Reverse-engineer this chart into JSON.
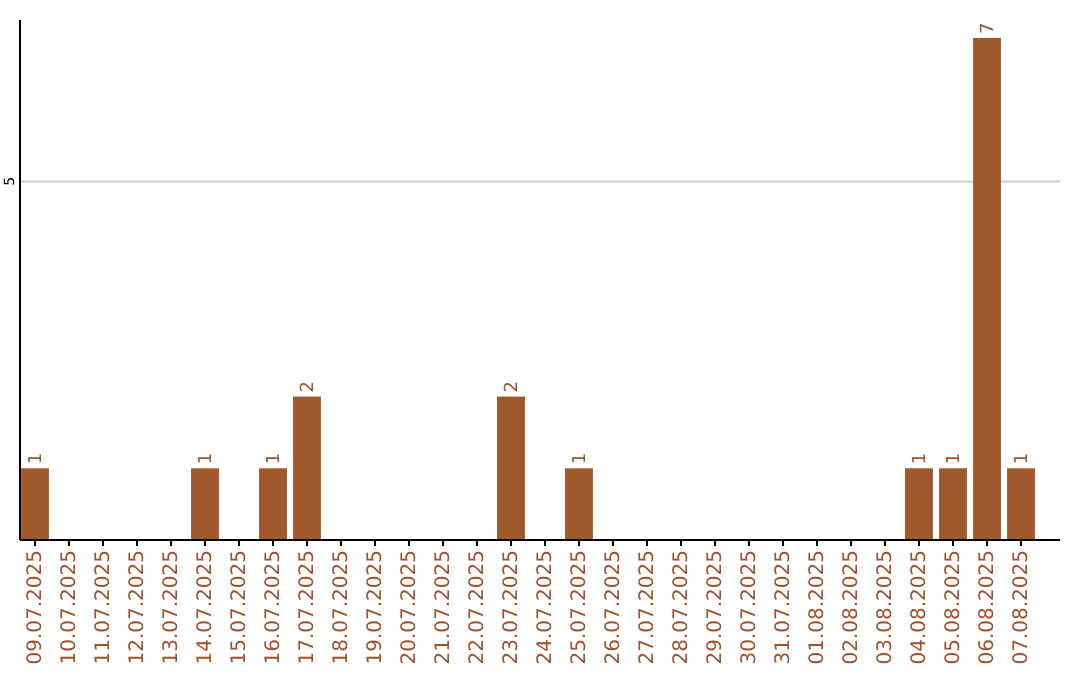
{
  "chart_data": {
    "type": "bar",
    "categories": [
      "09.07.2025",
      "10.07.2025",
      "11.07.2025",
      "12.07.2025",
      "13.07.2025",
      "14.07.2025",
      "15.07.2025",
      "16.07.2025",
      "17.07.2025",
      "18.07.2025",
      "19.07.2025",
      "20.07.2025",
      "21.07.2025",
      "22.07.2025",
      "23.07.2025",
      "24.07.2025",
      "25.07.2025",
      "26.07.2025",
      "27.07.2025",
      "28.07.2025",
      "29.07.2025",
      "30.07.2025",
      "31.07.2025",
      "01.08.2025",
      "02.08.2025",
      "03.08.2025",
      "04.08.2025",
      "05.08.2025",
      "06.08.2025",
      "07.08.2025"
    ],
    "values": [
      1,
      0,
      0,
      0,
      0,
      1,
      0,
      1,
      2,
      0,
      0,
      0,
      0,
      0,
      2,
      0,
      1,
      0,
      0,
      0,
      0,
      0,
      0,
      0,
      0,
      0,
      1,
      1,
      7,
      1
    ],
    "value_labels": [
      "1",
      null,
      null,
      null,
      null,
      "1",
      null,
      "1",
      "2",
      null,
      null,
      null,
      null,
      null,
      "2",
      null,
      "1",
      null,
      null,
      null,
      null,
      null,
      null,
      null,
      null,
      null,
      "1",
      "1",
      "7",
      "1"
    ],
    "color": "#a0592a",
    "ylim": [
      0,
      7.25
    ],
    "yticks": [
      5
    ],
    "grid": "y"
  }
}
